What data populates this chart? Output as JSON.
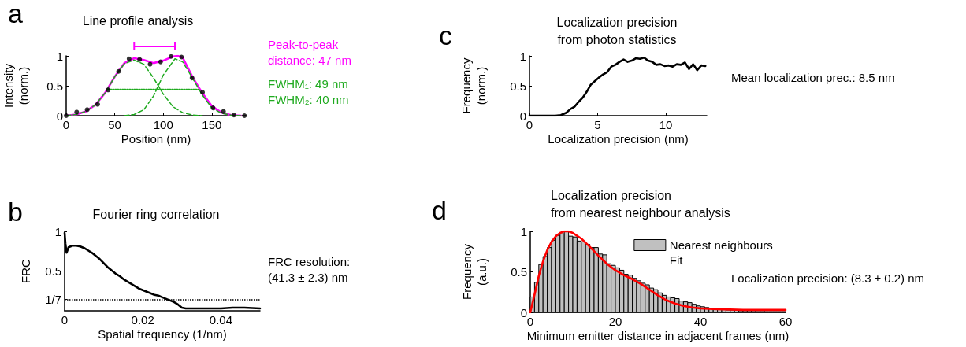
{
  "chart_data": [
    {
      "type": "line",
      "title": "Line profile analysis",
      "xlabel": "Position (nm)",
      "ylabel": "Intensity\n(norm.)",
      "xlim": [
        0,
        185
      ],
      "xticks": [
        0,
        50,
        100,
        150
      ],
      "ylim": [
        0,
        1
      ],
      "yticks": [
        0,
        0.5,
        1
      ],
      "annotations": [
        "a",
        "Peak-to-peak\ndistance: 47 nm",
        "FWHM₁: 49 nm",
        "FWHM₂: 40 nm"
      ],
      "series": [
        {
          "type": "scatter",
          "marker": "circle",
          "color": "#000000",
          "x": [
            0,
            10.8,
            21.6,
            32.4,
            43.2,
            54,
            64.8,
            75.6,
            86.4,
            97.2,
            108,
            118.8,
            129.6,
            140.4,
            151.2,
            162,
            172.8,
            183.6
          ],
          "values": [
            0.0,
            0.06,
            0.1,
            0.19,
            0.43,
            0.74,
            0.95,
            0.94,
            0.86,
            0.9,
            0.99,
            0.98,
            0.63,
            0.39,
            0.13,
            0.07,
            0.01,
            0.0
          ]
        },
        {
          "color": "#ff00ff",
          "line_style": "solid",
          "x": [
            0,
            10,
            20,
            30,
            40,
            50,
            60,
            70,
            80,
            90,
            100,
            110,
            115,
            120,
            130,
            140,
            150,
            160,
            170,
            180
          ],
          "values": [
            0.0,
            0.02,
            0.07,
            0.18,
            0.38,
            0.65,
            0.88,
            0.96,
            0.93,
            0.88,
            0.92,
            0.99,
            1.0,
            0.97,
            0.65,
            0.38,
            0.16,
            0.05,
            0.01,
            0.0
          ]
        },
        {
          "color": "#1faa1f",
          "line_style": "dashed",
          "x": [
            0,
            10,
            20,
            30,
            40,
            50,
            60,
            70,
            80,
            90,
            100,
            110,
            120,
            130,
            140
          ],
          "values": [
            0,
            0.02,
            0.07,
            0.18,
            0.38,
            0.65,
            0.87,
            0.93,
            0.86,
            0.63,
            0.36,
            0.15,
            0.05,
            0.01,
            0
          ]
        },
        {
          "color": "#1faa1f",
          "line_style": "dashed",
          "x": [
            60,
            70,
            80,
            90,
            100,
            112,
            120,
            130,
            140,
            150,
            160,
            170,
            180
          ],
          "values": [
            0,
            0.02,
            0.1,
            0.33,
            0.68,
            0.95,
            0.9,
            0.63,
            0.35,
            0.13,
            0.04,
            0.01,
            0
          ]
        },
        {
          "color": "#1faa1f",
          "line_style": "dotted",
          "x": [
            43,
            136
          ],
          "values": [
            0.44,
            0.44
          ]
        }
      ]
    },
    {
      "type": "line",
      "title": "Fourier ring correlation",
      "xlabel": "Spatial frequency (1/nm)",
      "ylabel": "FRC",
      "xlim": [
        0,
        0.05
      ],
      "xticks": [
        0,
        0.02,
        0.04
      ],
      "ylim": [
        0,
        1
      ],
      "yticks": [
        {
          "value": 0.143,
          "label": "1/7"
        },
        0.5,
        1
      ],
      "annotations": [
        "b",
        "FRC resolution:\n(41.3 ± 2.3) nm"
      ],
      "ref_lines": [
        {
          "axis": "y",
          "value": 0.143,
          "line_style": "dotted",
          "color": "#000000"
        }
      ],
      "series": [
        {
          "color": "#000000",
          "line_style": "solid",
          "x": [
            0,
            0.0002,
            0.0005,
            0.001,
            0.002,
            0.003,
            0.004,
            0.005,
            0.006,
            0.007,
            0.008,
            0.009,
            0.01,
            0.011,
            0.012,
            0.013,
            0.014,
            0.015,
            0.016,
            0.017,
            0.018,
            0.019,
            0.02,
            0.021,
            0.022,
            0.023,
            0.024,
            0.025,
            0.026,
            0.027,
            0.028,
            0.029,
            0.03,
            0.031,
            0.033,
            0.036,
            0.04,
            0.043,
            0.046,
            0.05
          ],
          "values": [
            0.98,
            0.85,
            0.73,
            0.8,
            0.82,
            0.82,
            0.81,
            0.79,
            0.76,
            0.73,
            0.69,
            0.65,
            0.6,
            0.55,
            0.51,
            0.47,
            0.44,
            0.4,
            0.37,
            0.34,
            0.31,
            0.28,
            0.26,
            0.24,
            0.22,
            0.2,
            0.19,
            0.17,
            0.15,
            0.13,
            0.11,
            0.08,
            0.04,
            0.03,
            0.03,
            0.03,
            0.03,
            0.04,
            0.04,
            0.03
          ]
        }
      ]
    },
    {
      "type": "line",
      "title": "Localization precision\nfrom photon statistics",
      "xlabel": "Localization precision (nm)",
      "ylabel": "Frequency\n(norm.)",
      "xlim": [
        0,
        13
      ],
      "xticks": [
        0,
        5,
        10
      ],
      "ylim": [
        0,
        1
      ],
      "yticks": [
        0,
        0.5,
        1
      ],
      "annotations": [
        "c",
        "Mean localization prec.: 8.5 nm"
      ],
      "series": [
        {
          "color": "#000000",
          "line_style": "solid",
          "x": [
            0,
            1.9,
            2.3,
            2.7,
            3.0,
            3.3,
            3.6,
            3.9,
            4.2,
            4.5,
            4.8,
            5.1,
            5.4,
            5.7,
            6.0,
            6.3,
            6.6,
            6.9,
            7.2,
            7.5,
            7.8,
            8.1,
            8.4,
            8.7,
            9.0,
            9.3,
            9.6,
            9.9,
            10.2,
            10.5,
            10.8,
            11.1,
            11.4,
            11.7,
            12.0,
            12.3,
            12.6,
            12.9
          ],
          "values": [
            0,
            0,
            0.01,
            0.05,
            0.11,
            0.15,
            0.23,
            0.3,
            0.4,
            0.52,
            0.58,
            0.64,
            0.69,
            0.73,
            0.82,
            0.85,
            0.9,
            0.94,
            0.9,
            0.92,
            0.96,
            0.95,
            0.97,
            0.92,
            0.9,
            0.85,
            0.86,
            0.83,
            0.84,
            0.82,
            0.86,
            0.85,
            0.89,
            0.78,
            0.86,
            0.76,
            0.84,
            0.83
          ]
        }
      ]
    },
    {
      "type": "histogram",
      "title": "Localization precision\nfrom nearest neighbour analysis",
      "xlabel": "Minimum emitter distance in adjacent frames (nm)",
      "ylabel": "Frequency\n(a.u.)",
      "xlim": [
        0,
        60
      ],
      "xticks": [
        0,
        20,
        40,
        60
      ],
      "ylim": [
        0,
        1
      ],
      "yticks": [
        0,
        0.5,
        1
      ],
      "legend": "top right",
      "annotations": [
        "d",
        "Localization precision: (8.3 ± 0.2) nm"
      ],
      "series": [
        {
          "name": "Nearest neighbours",
          "color": "#c0c0c0",
          "bins": [
            0,
            1,
            2,
            3,
            4,
            5,
            6,
            7,
            8,
            9,
            10,
            11,
            12,
            13,
            14,
            15,
            16,
            17,
            18,
            19,
            20,
            21,
            22,
            23,
            24,
            25,
            26,
            27,
            28,
            29,
            30,
            31,
            32,
            33,
            34,
            35,
            36,
            37,
            38,
            39,
            40,
            41,
            42,
            43,
            44,
            45,
            46,
            47,
            48,
            49,
            50,
            51,
            52,
            53,
            54,
            55,
            56,
            57,
            58,
            59,
            60
          ],
          "values": [
            0.19,
            0.37,
            0.59,
            0.69,
            0.8,
            0.89,
            0.95,
            0.97,
            1.0,
            0.94,
            0.93,
            0.88,
            0.87,
            0.84,
            0.8,
            0.8,
            0.72,
            0.71,
            0.6,
            0.58,
            0.55,
            0.52,
            0.47,
            0.46,
            0.42,
            0.39,
            0.36,
            0.34,
            0.3,
            0.28,
            0.24,
            0.21,
            0.19,
            0.18,
            0.17,
            0.14,
            0.13,
            0.12,
            0.1,
            0.08,
            0.07,
            0.06,
            0.05,
            0.05,
            0.04,
            0.04,
            0.03,
            0.03,
            0.03,
            0.02,
            0.02,
            0.02,
            0.02,
            0.02,
            0.02,
            0.01,
            0.01,
            0.01,
            0.01,
            0.01
          ]
        },
        {
          "name": "Fit",
          "type": "line",
          "color": "#ff0000",
          "line_style": "solid",
          "x": [
            0,
            1,
            2,
            3,
            4,
            5,
            6,
            7,
            8,
            9,
            10,
            12,
            14,
            16,
            18,
            20,
            22,
            24,
            26,
            28,
            30,
            32,
            34,
            36,
            38,
            40,
            44,
            50,
            60
          ],
          "values": [
            0,
            0.22,
            0.45,
            0.63,
            0.77,
            0.87,
            0.94,
            0.98,
            1.0,
            1.0,
            0.98,
            0.91,
            0.81,
            0.7,
            0.6,
            0.52,
            0.46,
            0.41,
            0.35,
            0.28,
            0.21,
            0.15,
            0.11,
            0.08,
            0.06,
            0.05,
            0.04,
            0.03,
            0.03
          ]
        }
      ]
    }
  ]
}
